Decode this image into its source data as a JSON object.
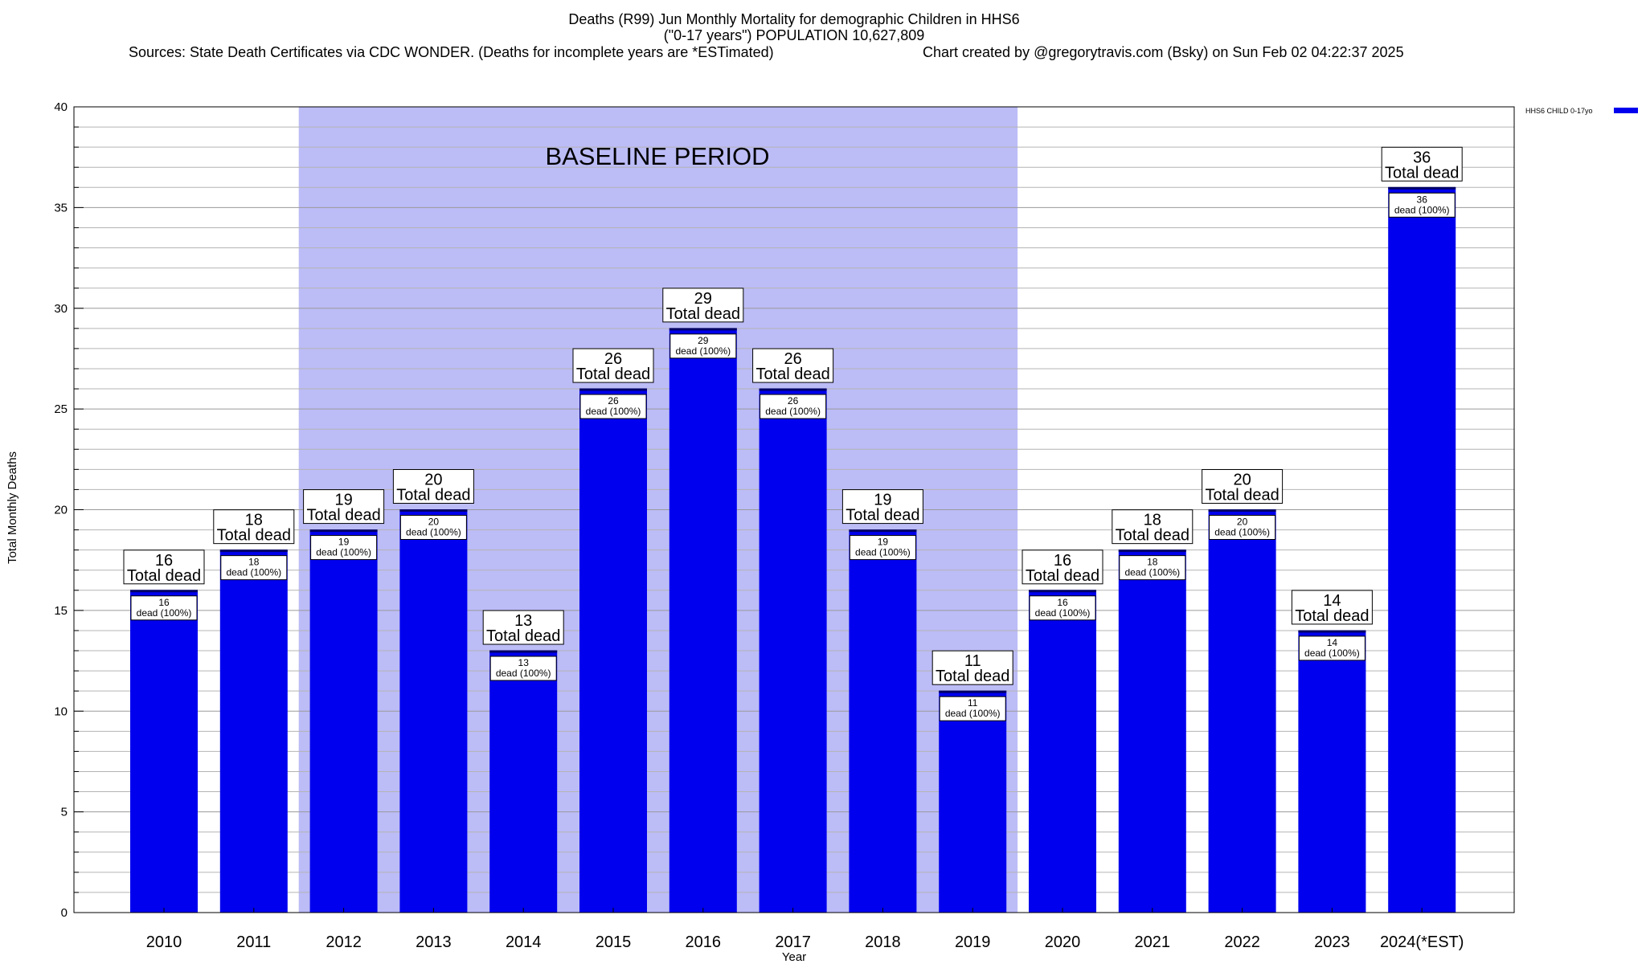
{
  "chart_data": {
    "type": "bar",
    "title_lines": [
      "Deaths (R99) Jun Monthly Mortality for demographic Children in HHS6",
      "(\"0-17 years\") POPULATION 10,627,809"
    ],
    "sources": "Sources: State Death Certificates via CDC WONDER. (Deaths for incomplete years are *ESTimated)",
    "credit": "Chart created by @gregorytravis.com (Bsky) on Sun Feb 02 04:22:37 2025",
    "xlabel": "Year",
    "ylabel": "Total Monthly Deaths",
    "ylim": [
      0,
      40
    ],
    "y_major_ticks": [
      0,
      5,
      10,
      15,
      20,
      25,
      30,
      35,
      40
    ],
    "y_minor_step": 1,
    "grid": true,
    "legend_position": "top-right",
    "categories": [
      "2010",
      "2011",
      "2012",
      "2013",
      "2014",
      "2015",
      "2016",
      "2017",
      "2018",
      "2019",
      "2020",
      "2021",
      "2022",
      "2023",
      "2024(*EST)"
    ],
    "series": [
      {
        "name": "HHS6 CHILD 0-17yo",
        "color": "#0000ee",
        "values": [
          16,
          18,
          19,
          20,
          13,
          26,
          29,
          26,
          19,
          11,
          16,
          18,
          20,
          14,
          36
        ]
      }
    ],
    "top_label_suffix": "Total dead",
    "inner_label_suffix": "dead (100%)",
    "baseline_period": {
      "label": "BASELINE PERIOD",
      "from": "2012",
      "to": "2019",
      "color": "#bcbcf7"
    }
  }
}
